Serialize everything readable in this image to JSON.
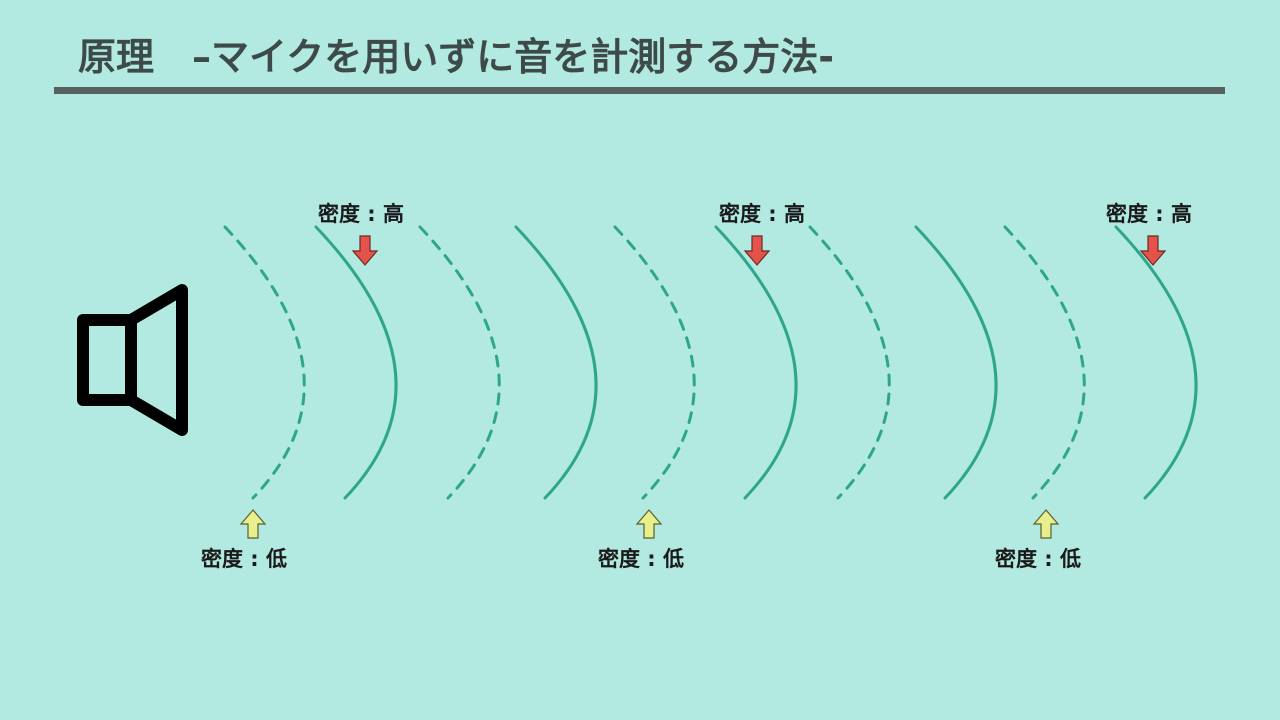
{
  "title": "原理　–マイクを用いずに音を計測する方法-",
  "labels": {
    "high": "密度 : 高",
    "low": "密度 : 低"
  },
  "colors": {
    "background": "#b2e9e0",
    "wave": "#2ea68b",
    "high_arrow": "#e4524a",
    "low_arrow": "#e9ef8c",
    "speaker": "#000000"
  },
  "icons": {
    "speaker": "speaker-icon",
    "high_arrow": "arrow-down-icon",
    "low_arrow": "arrow-up-icon"
  }
}
